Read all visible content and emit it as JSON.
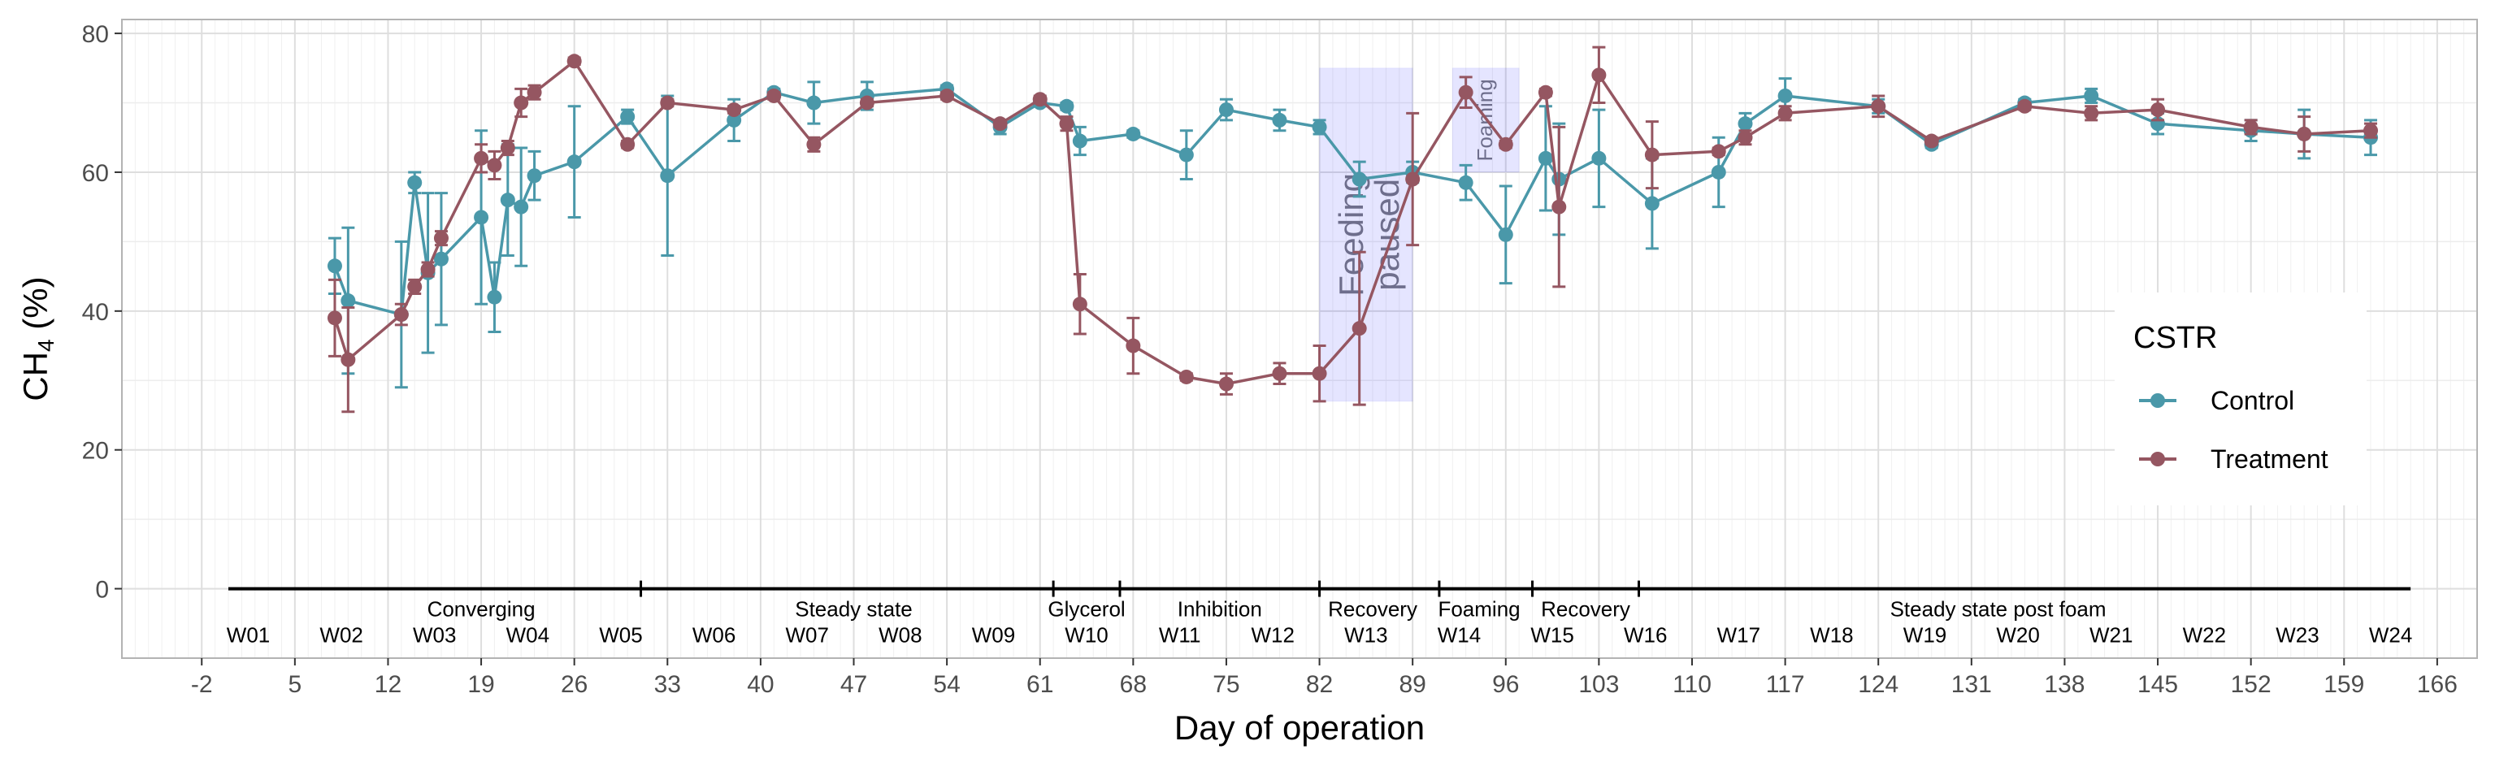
{
  "chart_data": {
    "type": "line",
    "xlabel": "Day of operation",
    "ylabel": "CH",
    "ylabel_sub": "4",
    "ylabel_suffix": " (%)",
    "xlim": [
      -8,
      169
    ],
    "ylim": [
      -10,
      82
    ],
    "x_ticks": [
      -2,
      5,
      12,
      19,
      26,
      33,
      40,
      47,
      54,
      61,
      68,
      75,
      82,
      89,
      96,
      103,
      110,
      117,
      124,
      131,
      138,
      145,
      152,
      159,
      166
    ],
    "y_ticks": [
      0,
      20,
      40,
      60,
      80
    ],
    "grid": true,
    "legend": {
      "title": "CSTR",
      "position": "right"
    },
    "series": [
      {
        "name": "Control",
        "color": "#4a98a9",
        "points": [
          {
            "x": 8,
            "y": 46.5,
            "err": 4
          },
          {
            "x": 9,
            "y": 41.5,
            "err": 10.5
          },
          {
            "x": 13,
            "y": 39.5,
            "err": 10.5
          },
          {
            "x": 14,
            "y": 58.5,
            "err": 1.5
          },
          {
            "x": 15,
            "y": 45.5,
            "err": 11.5
          },
          {
            "x": 16,
            "y": 47.5,
            "err": 9.5
          },
          {
            "x": 19,
            "y": 53.5,
            "err": 12.5
          },
          {
            "x": 20,
            "y": 42,
            "err": 5
          },
          {
            "x": 21,
            "y": 56,
            "err": 8
          },
          {
            "x": 22,
            "y": 55,
            "err": 8.5
          },
          {
            "x": 23,
            "y": 59.5,
            "err": 3.5
          },
          {
            "x": 26,
            "y": 61.5,
            "err": 8
          },
          {
            "x": 30,
            "y": 68,
            "err": 1
          },
          {
            "x": 33,
            "y": 59.5,
            "err": 11.5
          },
          {
            "x": 38,
            "y": 67.5,
            "err": 3
          },
          {
            "x": 41,
            "y": 71.5,
            "err": 0.5
          },
          {
            "x": 44,
            "y": 70,
            "err": 3
          },
          {
            "x": 48,
            "y": 71,
            "err": 2
          },
          {
            "x": 54,
            "y": 72,
            "err": 0.5
          },
          {
            "x": 58,
            "y": 66.5,
            "err": 1
          },
          {
            "x": 61,
            "y": 70,
            "err": 0.5
          },
          {
            "x": 63,
            "y": 69.5,
            "err": 0.5
          },
          {
            "x": 64,
            "y": 64.5,
            "err": 2
          },
          {
            "x": 68,
            "y": 65.5,
            "err": 0.5
          },
          {
            "x": 72,
            "y": 62.5,
            "err": 3.5
          },
          {
            "x": 75,
            "y": 69,
            "err": 1.5
          },
          {
            "x": 79,
            "y": 67.5,
            "err": 1.5
          },
          {
            "x": 82,
            "y": 66.5,
            "err": 1
          },
          {
            "x": 85,
            "y": 59,
            "err": 2.5
          },
          {
            "x": 89,
            "y": 60,
            "err": 1.5
          },
          {
            "x": 93,
            "y": 58.5,
            "err": 2.5
          },
          {
            "x": 96,
            "y": 51,
            "err": 7
          },
          {
            "x": 99,
            "y": 62,
            "err": 7.5
          },
          {
            "x": 100,
            "y": 59,
            "err": 8
          },
          {
            "x": 103,
            "y": 62,
            "err": 7
          },
          {
            "x": 107,
            "y": 55.5,
            "err": 6.5
          },
          {
            "x": 112,
            "y": 60,
            "err": 5
          },
          {
            "x": 114,
            "y": 67,
            "err": 1.5
          },
          {
            "x": 117,
            "y": 71,
            "err": 2.5
          },
          {
            "x": 124,
            "y": 69.5,
            "err": 1
          },
          {
            "x": 128,
            "y": 64,
            "err": 0.5
          },
          {
            "x": 135,
            "y": 70,
            "err": 0.5
          },
          {
            "x": 140,
            "y": 71,
            "err": 1
          },
          {
            "x": 145,
            "y": 67,
            "err": 1.5
          },
          {
            "x": 152,
            "y": 66,
            "err": 1.5
          },
          {
            "x": 156,
            "y": 65.5,
            "err": 3.5
          },
          {
            "x": 161,
            "y": 65,
            "err": 2.5
          }
        ]
      },
      {
        "name": "Treatment",
        "color": "#955661",
        "points": [
          {
            "x": 8,
            "y": 39,
            "err": 5.5
          },
          {
            "x": 9,
            "y": 33,
            "err": 7.5
          },
          {
            "x": 13,
            "y": 39.5,
            "err": 1.5
          },
          {
            "x": 14,
            "y": 43.5,
            "err": 1
          },
          {
            "x": 15,
            "y": 46,
            "err": 1
          },
          {
            "x": 16,
            "y": 50.5,
            "err": 1
          },
          {
            "x": 19,
            "y": 62,
            "err": 2
          },
          {
            "x": 20,
            "y": 61,
            "err": 2
          },
          {
            "x": 21,
            "y": 63.5,
            "err": 1
          },
          {
            "x": 22,
            "y": 70,
            "err": 2
          },
          {
            "x": 23,
            "y": 71.5,
            "err": 1
          },
          {
            "x": 26,
            "y": 76,
            "err": 0.5
          },
          {
            "x": 30,
            "y": 64,
            "err": 0.5
          },
          {
            "x": 33,
            "y": 70,
            "err": 0.5
          },
          {
            "x": 38,
            "y": 69,
            "err": 0.5
          },
          {
            "x": 41,
            "y": 71,
            "err": 0.5
          },
          {
            "x": 44,
            "y": 64,
            "err": 1
          },
          {
            "x": 48,
            "y": 70,
            "err": 0.5
          },
          {
            "x": 54,
            "y": 71,
            "err": 0.5
          },
          {
            "x": 58,
            "y": 67,
            "err": 0.5
          },
          {
            "x": 61,
            "y": 70.5,
            "err": 0.5
          },
          {
            "x": 63,
            "y": 67,
            "err": 1
          },
          {
            "x": 64,
            "y": 41,
            "err": 4.3
          },
          {
            "x": 68,
            "y": 35,
            "err": 4
          },
          {
            "x": 72,
            "y": 30.5,
            "err": 0.5
          },
          {
            "x": 75,
            "y": 29.5,
            "err": 1.5
          },
          {
            "x": 79,
            "y": 31,
            "err": 1.5
          },
          {
            "x": 82,
            "y": 31,
            "err": 4
          },
          {
            "x": 85,
            "y": 37.5,
            "err": 11
          },
          {
            "x": 89,
            "y": 59,
            "err": 9.5
          },
          {
            "x": 93,
            "y": 71.5,
            "err": 2.2
          },
          {
            "x": 96,
            "y": 64,
            "err": 0.5
          },
          {
            "x": 99,
            "y": 71.5,
            "err": 0.5
          },
          {
            "x": 100,
            "y": 55,
            "err": 11.5
          },
          {
            "x": 103,
            "y": 74,
            "err": 4
          },
          {
            "x": 107,
            "y": 62.5,
            "err": 4.8
          },
          {
            "x": 112,
            "y": 63,
            "err": 0.5
          },
          {
            "x": 114,
            "y": 65,
            "err": 1
          },
          {
            "x": 117,
            "y": 68.5,
            "err": 1
          },
          {
            "x": 124,
            "y": 69.5,
            "err": 1.5
          },
          {
            "x": 128,
            "y": 64.5,
            "err": 0.5
          },
          {
            "x": 135,
            "y": 69.5,
            "err": 0.5
          },
          {
            "x": 140,
            "y": 68.5,
            "err": 1
          },
          {
            "x": 145,
            "y": 69,
            "err": 1.5
          },
          {
            "x": 152,
            "y": 66.5,
            "err": 1
          },
          {
            "x": 156,
            "y": 65.5,
            "err": 2.5
          },
          {
            "x": 161,
            "y": 66,
            "err": 1
          }
        ]
      }
    ],
    "shaded_regions": [
      {
        "x0": 82,
        "x1": 89,
        "y0": 27,
        "y1": 75,
        "label": "Feeding paused"
      },
      {
        "x0": 92,
        "x1": 97,
        "y0": 60,
        "y1": 75,
        "label": "Foaming"
      }
    ],
    "timeline": {
      "y": 0,
      "x_start": 0,
      "x_end": 164,
      "boundaries": [
        31,
        62,
        67,
        82,
        91,
        98,
        106
      ],
      "phases": [
        {
          "label": "Converging",
          "x": 19
        },
        {
          "label": "Steady state",
          "x": 47
        },
        {
          "label": "Glycerol",
          "x": 64.5
        },
        {
          "label": "Inhibition",
          "x": 74.5
        },
        {
          "label": "Recovery",
          "x": 86
        },
        {
          "label": "Foaming",
          "x": 94
        },
        {
          "label": "Recovery",
          "x": 102
        },
        {
          "label": "Steady state post foam",
          "x": 133
        }
      ],
      "weeks": [
        {
          "label": "W01",
          "x": 1.5
        },
        {
          "label": "W02",
          "x": 8.5
        },
        {
          "label": "W03",
          "x": 15.5
        },
        {
          "label": "W04",
          "x": 22.5
        },
        {
          "label": "W05",
          "x": 29.5
        },
        {
          "label": "W06",
          "x": 36.5
        },
        {
          "label": "W07",
          "x": 43.5
        },
        {
          "label": "W08",
          "x": 50.5
        },
        {
          "label": "W09",
          "x": 57.5
        },
        {
          "label": "W10",
          "x": 64.5
        },
        {
          "label": "W11",
          "x": 71.5
        },
        {
          "label": "W12",
          "x": 78.5
        },
        {
          "label": "W13",
          "x": 85.5
        },
        {
          "label": "W14",
          "x": 92.5
        },
        {
          "label": "W15",
          "x": 99.5
        },
        {
          "label": "W16",
          "x": 106.5
        },
        {
          "label": "W17",
          "x": 113.5
        },
        {
          "label": "W18",
          "x": 120.5
        },
        {
          "label": "W19",
          "x": 127.5
        },
        {
          "label": "W20",
          "x": 134.5
        },
        {
          "label": "W21",
          "x": 141.5
        },
        {
          "label": "W22",
          "x": 148.5
        },
        {
          "label": "W23",
          "x": 155.5
        },
        {
          "label": "W24",
          "x": 162.5
        }
      ]
    }
  }
}
